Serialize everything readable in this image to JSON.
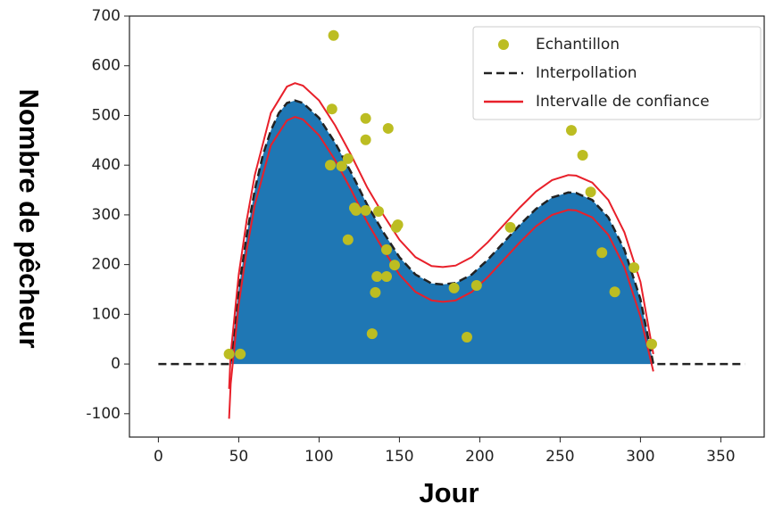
{
  "chart_data": {
    "type": "line",
    "xlabel": "Jour",
    "ylabel": "Nombre de pêcheur",
    "xlim": [
      -18,
      377
    ],
    "ylim": [
      -147,
      700
    ],
    "xticks": [
      0,
      50,
      100,
      150,
      200,
      250,
      300,
      350
    ],
    "yticks": [
      -100,
      0,
      100,
      200,
      300,
      400,
      500,
      600,
      700
    ],
    "legend": "upper right",
    "series": [
      {
        "name": "Echantillon",
        "type": "scatter",
        "color": "#bcbd22",
        "x": [
          44,
          51,
          109,
          108,
          107,
          114,
          118,
          118,
          122,
          123,
          129,
          129,
          129,
          143,
          137,
          142,
          148,
          149,
          147,
          136,
          142,
          135,
          133,
          184,
          192,
          198,
          219,
          257,
          264,
          269,
          276,
          284,
          296,
          307
        ],
        "values": [
          20,
          20,
          661,
          513,
          400,
          398,
          413,
          250,
          314,
          309,
          309,
          494,
          451,
          474,
          307,
          230,
          275,
          280,
          199,
          176,
          176,
          144,
          61,
          153,
          54,
          158,
          275,
          470,
          420,
          346,
          224,
          145,
          194,
          40
        ]
      },
      {
        "name": "Interpollation",
        "type": "line",
        "color": "#222222",
        "dash": true,
        "fill_color": "#1f77b4",
        "x": [
          0,
          45,
          50,
          55,
          60,
          65,
          70,
          75,
          80,
          85,
          90,
          100,
          110,
          120,
          130,
          140,
          150,
          160,
          170,
          177,
          185,
          195,
          205,
          215,
          225,
          235,
          245,
          255,
          260,
          270,
          280,
          290,
          300,
          308,
          365
        ],
        "values": [
          0,
          0,
          150,
          260,
          350,
          420,
          470,
          505,
          525,
          530,
          525,
          495,
          445,
          385,
          320,
          265,
          215,
          180,
          162,
          160,
          163,
          180,
          210,
          245,
          280,
          312,
          335,
          345,
          344,
          330,
          295,
          230,
          130,
          0,
          0
        ]
      },
      {
        "name": "Intervalle de confiance",
        "type": "band",
        "color": "#e8202a",
        "x": [
          44,
          45,
          50,
          55,
          60,
          70,
          80,
          85,
          90,
          100,
          110,
          120,
          130,
          140,
          150,
          160,
          170,
          177,
          185,
          195,
          205,
          215,
          225,
          235,
          245,
          255,
          260,
          270,
          280,
          290,
          300,
          308
        ],
        "upper": [
          -50,
          20,
          180,
          290,
          380,
          505,
          558,
          565,
          560,
          530,
          480,
          420,
          355,
          300,
          250,
          215,
          197,
          195,
          198,
          215,
          245,
          280,
          315,
          347,
          370,
          380,
          379,
          365,
          330,
          265,
          165,
          20
        ],
        "lower": [
          -110,
          -40,
          120,
          230,
          320,
          440,
          490,
          497,
          492,
          460,
          410,
          350,
          285,
          230,
          180,
          145,
          128,
          125,
          128,
          145,
          175,
          210,
          245,
          277,
          300,
          310,
          309,
          295,
          260,
          195,
          95,
          -15
        ]
      }
    ]
  }
}
